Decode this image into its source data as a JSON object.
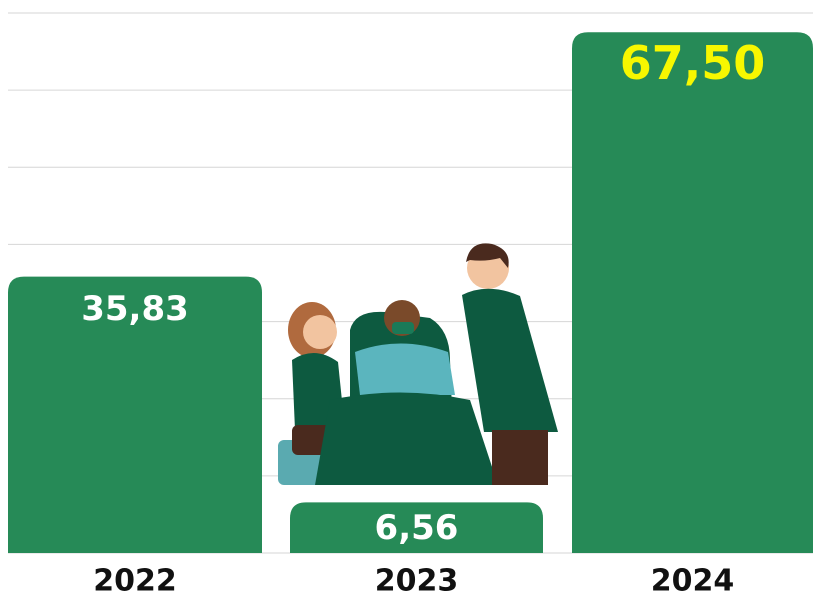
{
  "chart_data": {
    "type": "bar",
    "categories": [
      "2022",
      "2023",
      "2024"
    ],
    "values": [
      35.83,
      6.56,
      67.5
    ],
    "value_labels": [
      "35,83",
      "6,56",
      "67,50"
    ],
    "value_label_colors": [
      "#ffffff",
      "#ffffff",
      "#f7f700"
    ],
    "color": "#268a57",
    "ylim": [
      0,
      70
    ],
    "yticks": [
      0,
      10,
      20,
      30,
      40,
      50,
      60,
      70
    ],
    "grid": true
  }
}
